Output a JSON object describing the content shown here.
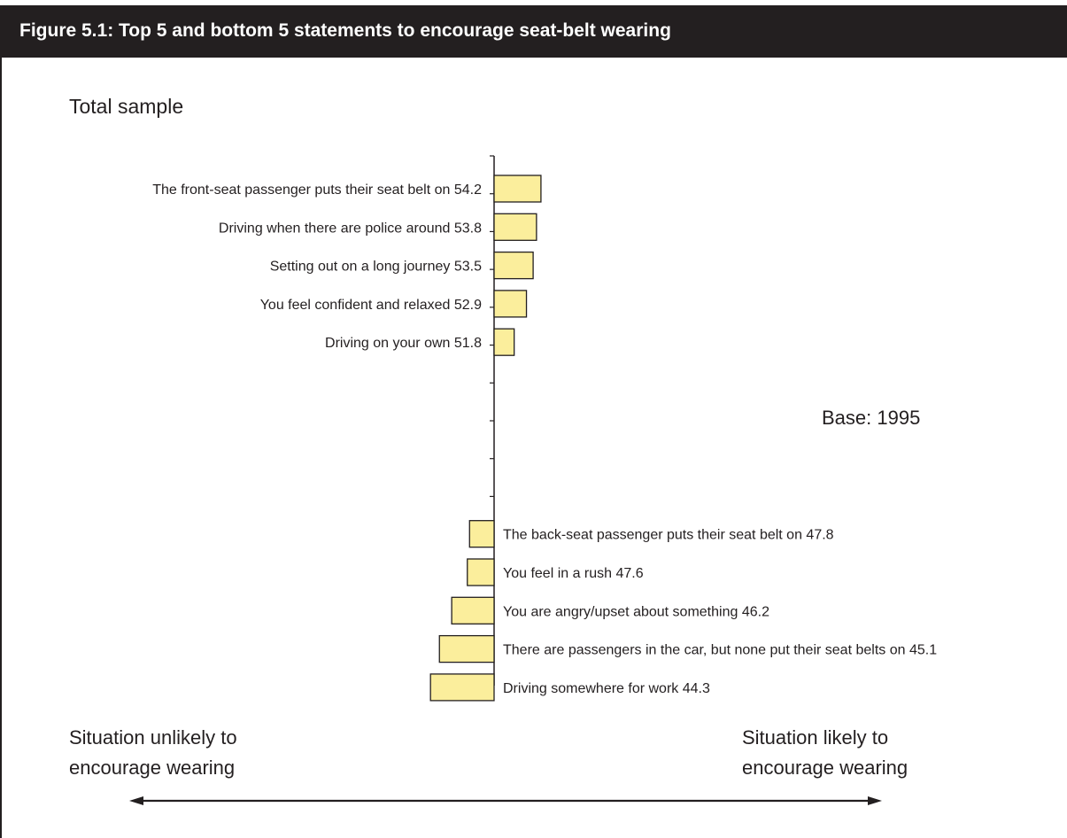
{
  "header": {
    "title": "Figure 5.1:  Top 5 and bottom 5 statements to encourage seat-belt wearing"
  },
  "subtitle": "Total sample",
  "base_note": "Base: 1995",
  "scale": {
    "left_line1": "Situation unlikely to",
    "left_line2": "encourage wearing",
    "right_line1": "Situation likely to",
    "right_line2": "encourage wearing"
  },
  "colors": {
    "bar_fill": "#fbee9c",
    "bar_stroke": "#231f20",
    "header_bg": "#231f20"
  },
  "chart_data": {
    "type": "bar",
    "orientation": "horizontal",
    "title": "Top 5 and bottom 5 statements to encourage seat-belt wearing",
    "baseline": 50,
    "categories": [
      "The front-seat passenger puts their seat belt on 54.2",
      "Driving when there are police around 53.8",
      "Setting out on a long journey 53.5",
      "You feel confident and relaxed 52.9",
      "Driving on your own 51.8",
      "The back-seat passenger puts their seat belt on 47.8",
      "You feel in a rush 47.6",
      "You are angry/upset about something 46.2",
      "There are passengers in the car, but none put their seat belts on 45.1",
      "Driving somewhere for work 44.3"
    ],
    "values": [
      54.2,
      53.8,
      53.5,
      52.9,
      51.8,
      47.8,
      47.6,
      46.2,
      45.1,
      44.3
    ],
    "group": [
      "top",
      "top",
      "top",
      "top",
      "top",
      "bottom",
      "bottom",
      "bottom",
      "bottom",
      "bottom"
    ],
    "grid": false,
    "legend": "none"
  }
}
